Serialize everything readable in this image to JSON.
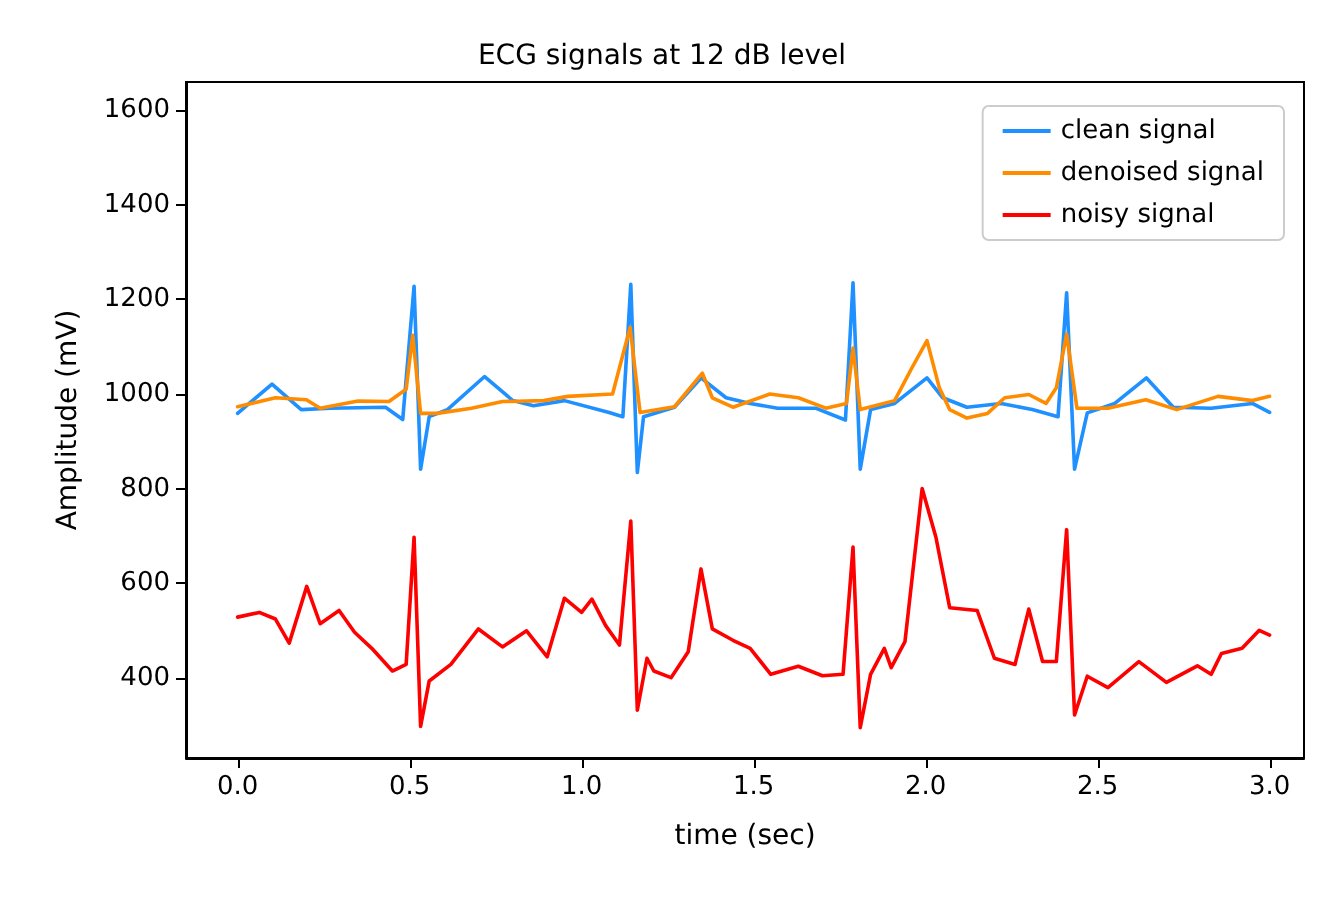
{
  "chart_data": {
    "type": "line",
    "title": "ECG signals at 12 dB level",
    "xlabel": "time (sec)",
    "ylabel": "Amplitude (mV)",
    "xlim": [
      -0.15,
      3.1
    ],
    "xticks": [
      {
        "value": 0,
        "label": "0.0"
      },
      {
        "value": 0.5,
        "label": "0.5"
      },
      {
        "value": 1,
        "label": "1.0"
      },
      {
        "value": 1.5,
        "label": "1.5"
      },
      {
        "value": 2,
        "label": "2.0"
      },
      {
        "value": 2.5,
        "label": "2.5"
      },
      {
        "value": 3,
        "label": "3.0"
      }
    ],
    "ylim": [
      230,
      1660
    ],
    "yticks": [
      400,
      600,
      800,
      1000,
      1200,
      1400,
      1600
    ],
    "grid": false,
    "legend": "top right",
    "marker": "none",
    "line_style": "solid",
    "series": [
      {
        "name": "clean signal",
        "color": "#1e90ff",
        "x": [
          0,
          0.1,
          0.185,
          0.27,
          0.43,
          0.48,
          0.513,
          0.532,
          0.557,
          0.61,
          0.718,
          0.8,
          0.86,
          0.95,
          1.08,
          1.12,
          1.143,
          1.162,
          1.18,
          1.27,
          1.347,
          1.42,
          1.49,
          1.57,
          1.68,
          1.767,
          1.789,
          1.81,
          1.84,
          1.91,
          2.004,
          2.05,
          2.12,
          2.22,
          2.31,
          2.385,
          2.41,
          2.433,
          2.47,
          2.55,
          2.642,
          2.72,
          2.83,
          2.95,
          3.0
        ],
        "values": [
          959,
          1021,
          967,
          970,
          972,
          946,
          1228,
          841,
          952,
          967,
          1037,
          986,
          975,
          986,
          961,
          952,
          1232,
          834,
          952,
          972,
          1034,
          992,
          980,
          970,
          970,
          945,
          1235,
          841,
          967,
          980,
          1034,
          992,
          972,
          980,
          967,
          952,
          1214,
          841,
          960,
          980,
          1034,
          972,
          970,
          980,
          961
        ]
      },
      {
        "name": "denoised signal",
        "color": "#ff8c00",
        "x": [
          0,
          0.11,
          0.2,
          0.24,
          0.35,
          0.44,
          0.49,
          0.509,
          0.532,
          0.58,
          0.68,
          0.77,
          0.89,
          0.96,
          1.09,
          1.141,
          1.17,
          1.27,
          1.351,
          1.38,
          1.44,
          1.547,
          1.63,
          1.71,
          1.77,
          1.789,
          1.81,
          1.91,
          1.96,
          2.004,
          2.04,
          2.07,
          2.12,
          2.18,
          2.23,
          2.3,
          2.35,
          2.38,
          2.41,
          2.44,
          2.53,
          2.64,
          2.73,
          2.85,
          2.95,
          3.0
        ],
        "values": [
          973,
          992,
          988,
          970,
          985,
          984,
          1010,
          1124,
          959,
          959,
          970,
          984,
          986,
          995,
          1000,
          1141,
          961,
          973,
          1044,
          992,
          972,
          1000,
          992,
          970,
          980,
          1097,
          967,
          986,
          1055,
          1113,
          1013,
          967,
          949,
          959,
          992,
          999,
          980,
          1013,
          1127,
          970,
          970,
          988,
          967,
          995,
          986,
          995
        ]
      },
      {
        "name": "noisy signal",
        "color": "#ff0000",
        "x": [
          0,
          0.063,
          0.11,
          0.15,
          0.201,
          0.24,
          0.295,
          0.34,
          0.39,
          0.45,
          0.49,
          0.513,
          0.532,
          0.557,
          0.62,
          0.7,
          0.77,
          0.84,
          0.9,
          0.95,
          1.0,
          1.03,
          1.07,
          1.11,
          1.143,
          1.162,
          1.19,
          1.21,
          1.26,
          1.31,
          1.347,
          1.38,
          1.44,
          1.49,
          1.55,
          1.63,
          1.7,
          1.76,
          1.789,
          1.81,
          1.84,
          1.88,
          1.9,
          1.94,
          1.99,
          2.03,
          2.07,
          2.15,
          2.2,
          2.26,
          2.3,
          2.34,
          2.38,
          2.41,
          2.433,
          2.47,
          2.53,
          2.62,
          2.7,
          2.79,
          2.83,
          2.86,
          2.92,
          2.97,
          3.0
        ],
        "values": [
          528,
          538,
          524,
          473,
          593,
          514,
          542,
          496,
          462,
          414,
          428,
          697,
          297,
          393,
          428,
          503,
          465,
          499,
          444,
          568,
          538,
          566,
          510,
          469,
          731,
          331,
          441,
          414,
          400,
          455,
          630,
          503,
          479,
          462,
          407,
          424,
          404,
          407,
          676,
          294,
          407,
          462,
          421,
          476,
          800,
          697,
          548,
          542,
          441,
          428,
          545,
          434,
          434,
          713,
          321,
          403,
          379,
          434,
          390,
          425,
          407,
          451,
          462,
          500,
          490
        ]
      }
    ]
  }
}
